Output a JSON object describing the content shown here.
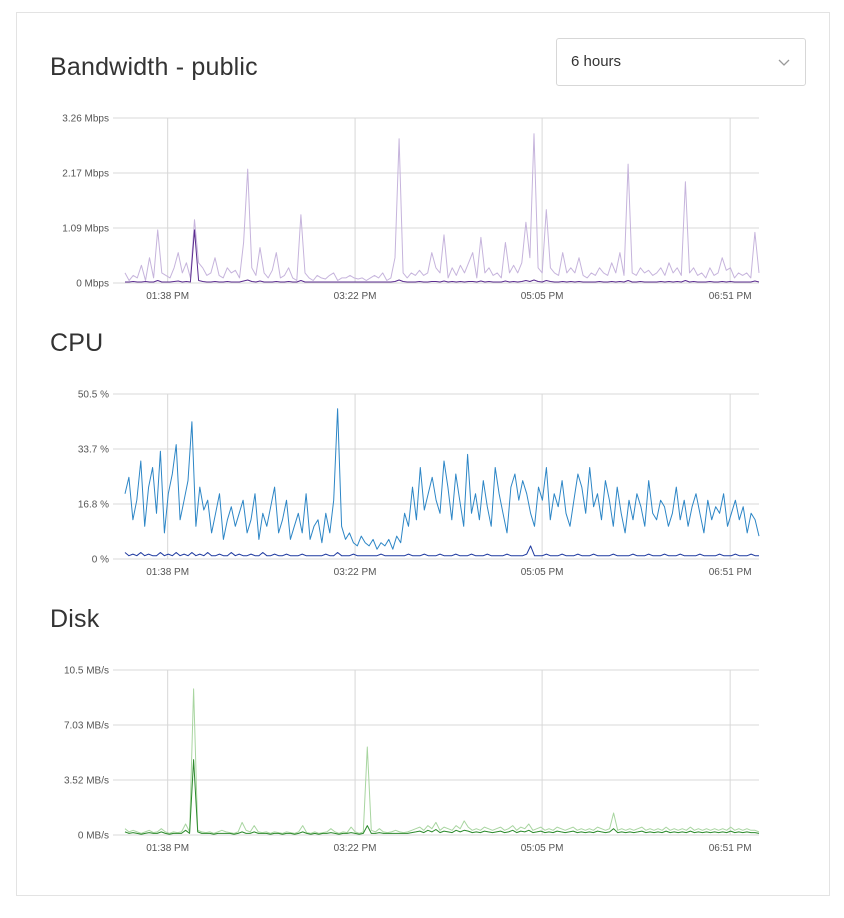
{
  "range_select": {
    "value": "6 hours",
    "chevron_icon": "chevron-down-icon"
  },
  "sections": {
    "bandwidth": {
      "title": "Bandwidth - public"
    },
    "cpu": {
      "title": "CPU"
    },
    "disk": {
      "title": "Disk"
    }
  },
  "colors": {
    "bandwidth_in": "#c6b4dc",
    "bandwidth_out": "#5b2c8f",
    "cpu_main": "#2d86c6",
    "cpu_secondary": "#1f3aa0",
    "disk_read": "#a8d5a0",
    "disk_write": "#2c8a2c",
    "grid": "#d8d8d8"
  },
  "chart_data": [
    {
      "id": "bandwidth",
      "type": "line",
      "title": "Bandwidth - public",
      "x_ticks": [
        "01:38 PM",
        "03:22 PM",
        "05:05 PM",
        "06:51 PM"
      ],
      "x_tick_positions": [
        0.0673,
        0.3629,
        0.6579,
        0.9545
      ],
      "y_ticks": [
        "3.26 Mbps",
        "2.17 Mbps",
        "1.09 Mbps",
        "0 Mbps"
      ],
      "ylim": [
        0,
        3.26
      ],
      "grid": true,
      "series": [
        {
          "key": "bandwidth_in",
          "values": [
            0.2,
            0.05,
            0.15,
            0.1,
            0.35,
            0.05,
            0.5,
            0.1,
            1.05,
            0.2,
            0.15,
            0.1,
            0.3,
            0.6,
            0.2,
            0.4,
            0.1,
            1.25,
            0.4,
            0.3,
            0.15,
            0.2,
            0.5,
            0.15,
            0.1,
            0.3,
            0.2,
            0.25,
            0.1,
            0.8,
            2.25,
            0.3,
            0.15,
            0.7,
            0.2,
            0.1,
            0.25,
            0.6,
            0.1,
            0.15,
            0.3,
            0.1,
            0.05,
            1.35,
            0.2,
            0.1,
            0.05,
            0.15,
            0.1,
            0.08,
            0.15,
            0.2,
            0.05,
            0.1,
            0.1,
            0.15,
            0.1,
            0.08,
            0.1,
            0.05,
            0.1,
            0.15,
            0.1,
            0.2,
            0.05,
            0.1,
            0.5,
            2.85,
            0.2,
            0.1,
            0.2,
            0.15,
            0.25,
            0.15,
            0.2,
            0.6,
            0.3,
            0.2,
            0.95,
            0.1,
            0.3,
            0.15,
            0.35,
            0.2,
            0.4,
            0.6,
            0.1,
            0.9,
            0.2,
            0.3,
            0.15,
            0.2,
            0.1,
            0.8,
            0.2,
            0.35,
            0.2,
            0.4,
            1.2,
            0.5,
            2.95,
            0.3,
            0.2,
            1.45,
            0.3,
            0.2,
            0.15,
            0.6,
            0.2,
            0.3,
            0.2,
            0.5,
            0.15,
            0.1,
            0.2,
            0.15,
            0.3,
            0.2,
            0.15,
            0.4,
            0.2,
            0.6,
            0.15,
            2.35,
            0.2,
            0.15,
            0.3,
            0.2,
            0.25,
            0.15,
            0.2,
            0.3,
            0.15,
            0.4,
            0.2,
            0.3,
            0.15,
            2.0,
            0.2,
            0.3,
            0.15,
            0.2,
            0.1,
            0.3,
            0.15,
            0.2,
            0.5,
            0.25,
            0.3,
            0.1,
            0.2,
            0.15,
            0.2,
            0.1,
            1.0,
            0.2
          ]
        },
        {
          "key": "bandwidth_out",
          "values": [
            0.02,
            0.02,
            0.03,
            0.02,
            0.02,
            0.03,
            0.02,
            0.02,
            0.05,
            0.02,
            0.02,
            0.02,
            0.03,
            0.04,
            0.02,
            0.03,
            0.02,
            1.05,
            0.05,
            0.03,
            0.02,
            0.02,
            0.03,
            0.02,
            0.02,
            0.03,
            0.02,
            0.02,
            0.02,
            0.04,
            0.06,
            0.03,
            0.02,
            0.04,
            0.02,
            0.02,
            0.02,
            0.03,
            0.02,
            0.02,
            0.03,
            0.02,
            0.02,
            0.05,
            0.02,
            0.02,
            0.02,
            0.02,
            0.02,
            0.02,
            0.02,
            0.02,
            0.02,
            0.02,
            0.02,
            0.02,
            0.02,
            0.02,
            0.02,
            0.02,
            0.02,
            0.02,
            0.02,
            0.02,
            0.02,
            0.02,
            0.03,
            0.06,
            0.03,
            0.02,
            0.02,
            0.02,
            0.03,
            0.02,
            0.02,
            0.03,
            0.03,
            0.02,
            0.04,
            0.02,
            0.03,
            0.02,
            0.03,
            0.02,
            0.03,
            0.03,
            0.02,
            0.04,
            0.02,
            0.03,
            0.02,
            0.02,
            0.02,
            0.04,
            0.02,
            0.03,
            0.02,
            0.03,
            0.05,
            0.03,
            0.06,
            0.03,
            0.02,
            0.05,
            0.03,
            0.02,
            0.02,
            0.03,
            0.02,
            0.03,
            0.02,
            0.03,
            0.02,
            0.02,
            0.02,
            0.02,
            0.03,
            0.02,
            0.02,
            0.03,
            0.02,
            0.03,
            0.02,
            0.05,
            0.02,
            0.02,
            0.03,
            0.02,
            0.02,
            0.02,
            0.02,
            0.03,
            0.02,
            0.03,
            0.02,
            0.03,
            0.02,
            0.05,
            0.02,
            0.03,
            0.02,
            0.02,
            0.02,
            0.03,
            0.02,
            0.02,
            0.03,
            0.02,
            0.03,
            0.02,
            0.02,
            0.02,
            0.02,
            0.02,
            0.04,
            0.02
          ]
        }
      ]
    },
    {
      "id": "cpu",
      "type": "line",
      "title": "CPU",
      "x_ticks": [
        "01:38 PM",
        "03:22 PM",
        "05:05 PM",
        "06:51 PM"
      ],
      "x_tick_positions": [
        0.0673,
        0.3629,
        0.6579,
        0.9545
      ],
      "y_ticks": [
        "50.5 %",
        "33.7 %",
        "16.8 %",
        "0 %"
      ],
      "ylim": [
        0,
        50.5
      ],
      "grid": true,
      "series": [
        {
          "key": "cpu_main",
          "values": [
            20,
            25,
            12,
            18,
            30,
            10,
            22,
            28,
            14,
            33,
            8,
            20,
            26,
            35,
            12,
            18,
            24,
            42,
            10,
            22,
            15,
            18,
            8,
            14,
            20,
            6,
            12,
            16,
            10,
            14,
            18,
            8,
            12,
            20,
            6,
            14,
            10,
            16,
            22,
            8,
            12,
            18,
            6,
            10,
            14,
            8,
            20,
            6,
            10,
            12,
            5,
            14,
            8,
            18,
            46,
            10,
            6,
            8,
            5,
            4,
            7,
            5,
            4,
            6,
            3,
            5,
            4,
            6,
            3,
            7,
            5,
            14,
            10,
            22,
            12,
            28,
            15,
            20,
            25,
            18,
            14,
            30,
            22,
            12,
            26,
            18,
            10,
            32,
            14,
            20,
            12,
            24,
            16,
            10,
            28,
            20,
            14,
            8,
            22,
            26,
            18,
            24,
            20,
            14,
            10,
            22,
            18,
            28,
            12,
            20,
            16,
            24,
            14,
            10,
            18,
            26,
            22,
            14,
            28,
            16,
            20,
            12,
            24,
            18,
            10,
            22,
            14,
            8,
            18,
            12,
            20,
            16,
            10,
            24,
            14,
            12,
            18,
            16,
            10,
            14,
            22,
            12,
            18,
            10,
            16,
            20,
            14,
            8,
            18,
            12,
            16,
            14,
            20,
            10,
            14,
            18,
            12,
            16,
            8,
            14,
            12,
            7
          ]
        },
        {
          "key": "cpu_secondary",
          "values": [
            2,
            1,
            1.5,
            1,
            2,
            1,
            1.5,
            1,
            1,
            2,
            1,
            1.5,
            1,
            2,
            1,
            1.5,
            1,
            2,
            1,
            1.5,
            1,
            2,
            1,
            1,
            1.5,
            1,
            1,
            2,
            1,
            1.5,
            1,
            1,
            1.5,
            1,
            1,
            2,
            1,
            1,
            1.5,
            1,
            1,
            1.5,
            1,
            1,
            1,
            1.5,
            1,
            1,
            1,
            1,
            1,
            1.5,
            1,
            1,
            2,
            1,
            1,
            1,
            1.5,
            1,
            1,
            1,
            1,
            1,
            1,
            1.5,
            1,
            1,
            1,
            1,
            1,
            1,
            1.5,
            1,
            1,
            1,
            1.5,
            1,
            1,
            1,
            1.5,
            1,
            1,
            1,
            1.5,
            1,
            1,
            1,
            1.5,
            1,
            1,
            1,
            1.5,
            1,
            1,
            1,
            1,
            1.5,
            1,
            1,
            1,
            1,
            1.5,
            4,
            1,
            1,
            1,
            1.5,
            1,
            1,
            1,
            1.5,
            1,
            1,
            1,
            1.5,
            1,
            1,
            1,
            1.5,
            1,
            1,
            1,
            1,
            1.5,
            1,
            1,
            1,
            1,
            1.5,
            1,
            1,
            1,
            1.5,
            1,
            1,
            1,
            1.5,
            1,
            1,
            1,
            1.5,
            1,
            1,
            1,
            1,
            1.5,
            1,
            1,
            1,
            1,
            1.5,
            1,
            1,
            1,
            1.5,
            1,
            1,
            1,
            1.5,
            1,
            1
          ]
        }
      ]
    },
    {
      "id": "disk",
      "type": "line",
      "title": "Disk",
      "x_ticks": [
        "01:38 PM",
        "03:22 PM",
        "05:05 PM",
        "06:51 PM"
      ],
      "x_tick_positions": [
        0.0673,
        0.3629,
        0.6579,
        0.9545
      ],
      "y_ticks": [
        "10.5 MB/s",
        "7.03 MB/s",
        "3.52 MB/s",
        "0 MB/s"
      ],
      "ylim": [
        0,
        10.5
      ],
      "grid": true,
      "series": [
        {
          "key": "disk_read",
          "values": [
            0.4,
            0.2,
            0.3,
            0.2,
            0.1,
            0.2,
            0.3,
            0.15,
            0.2,
            0.4,
            0.2,
            0.1,
            0.2,
            0.15,
            0.2,
            0.7,
            0.2,
            9.3,
            0.3,
            0.2,
            0.15,
            0.2,
            0.1,
            0.2,
            0.3,
            0.2,
            0.15,
            0.1,
            0.2,
            0.8,
            0.3,
            0.2,
            0.6,
            0.2,
            0.15,
            0.2,
            0.1,
            0.2,
            0.15,
            0.1,
            0.2,
            0.15,
            0.1,
            0.2,
            0.6,
            0.15,
            0.1,
            0.2,
            0.1,
            0.15,
            0.2,
            0.4,
            0.2,
            0.1,
            0.2,
            0.15,
            0.5,
            0.2,
            0.1,
            0.2,
            5.6,
            0.3,
            0.2,
            0.4,
            0.2,
            0.15,
            0.2,
            0.3,
            0.2,
            0.15,
            0.2,
            0.3,
            0.4,
            0.5,
            0.3,
            0.6,
            0.4,
            0.8,
            0.3,
            0.5,
            0.4,
            0.3,
            0.6,
            0.4,
            0.9,
            0.5,
            0.3,
            0.4,
            0.3,
            0.5,
            0.4,
            0.3,
            0.4,
            0.5,
            0.3,
            0.4,
            0.6,
            0.3,
            0.5,
            0.4,
            0.7,
            0.3,
            0.4,
            0.5,
            0.3,
            0.4,
            0.3,
            0.5,
            0.4,
            0.3,
            0.4,
            0.5,
            0.3,
            0.4,
            0.3,
            0.4,
            0.3,
            0.5,
            0.4,
            0.3,
            0.4,
            1.4,
            0.3,
            0.4,
            0.3,
            0.4,
            0.3,
            0.4,
            0.5,
            0.3,
            0.4,
            0.3,
            0.4,
            0.3,
            0.5,
            0.3,
            0.4,
            0.3,
            0.4,
            0.3,
            0.5,
            0.3,
            0.4,
            0.3,
            0.4,
            0.3,
            0.4,
            0.3,
            0.4,
            0.3,
            0.5,
            0.3,
            0.4,
            0.3,
            0.4,
            0.3,
            0.3,
            0.2
          ]
        },
        {
          "key": "disk_write",
          "values": [
            0.2,
            0.1,
            0.15,
            0.1,
            0.05,
            0.1,
            0.15,
            0.1,
            0.1,
            0.2,
            0.1,
            0.05,
            0.1,
            0.1,
            0.1,
            0.3,
            0.1,
            4.8,
            0.2,
            0.1,
            0.1,
            0.1,
            0.05,
            0.1,
            0.1,
            0.1,
            0.1,
            0.05,
            0.1,
            0.2,
            0.1,
            0.1,
            0.2,
            0.1,
            0.1,
            0.1,
            0.05,
            0.1,
            0.1,
            0.05,
            0.1,
            0.1,
            0.05,
            0.1,
            0.2,
            0.1,
            0.05,
            0.1,
            0.05,
            0.1,
            0.1,
            0.15,
            0.1,
            0.05,
            0.1,
            0.1,
            0.15,
            0.1,
            0.05,
            0.1,
            0.6,
            0.1,
            0.1,
            0.15,
            0.1,
            0.1,
            0.1,
            0.1,
            0.1,
            0.1,
            0.1,
            0.15,
            0.2,
            0.25,
            0.15,
            0.3,
            0.2,
            0.35,
            0.15,
            0.25,
            0.2,
            0.15,
            0.3,
            0.2,
            0.3,
            0.25,
            0.15,
            0.2,
            0.15,
            0.25,
            0.2,
            0.15,
            0.2,
            0.25,
            0.15,
            0.2,
            0.3,
            0.15,
            0.25,
            0.2,
            0.3,
            0.15,
            0.2,
            0.25,
            0.15,
            0.2,
            0.15,
            0.25,
            0.2,
            0.15,
            0.2,
            0.25,
            0.15,
            0.2,
            0.15,
            0.2,
            0.15,
            0.25,
            0.2,
            0.15,
            0.2,
            0.4,
            0.15,
            0.2,
            0.15,
            0.2,
            0.15,
            0.2,
            0.25,
            0.15,
            0.2,
            0.15,
            0.2,
            0.15,
            0.25,
            0.15,
            0.2,
            0.15,
            0.2,
            0.15,
            0.25,
            0.15,
            0.2,
            0.15,
            0.2,
            0.15,
            0.2,
            0.15,
            0.2,
            0.15,
            0.25,
            0.15,
            0.2,
            0.15,
            0.2,
            0.15,
            0.15,
            0.1
          ]
        }
      ]
    }
  ]
}
